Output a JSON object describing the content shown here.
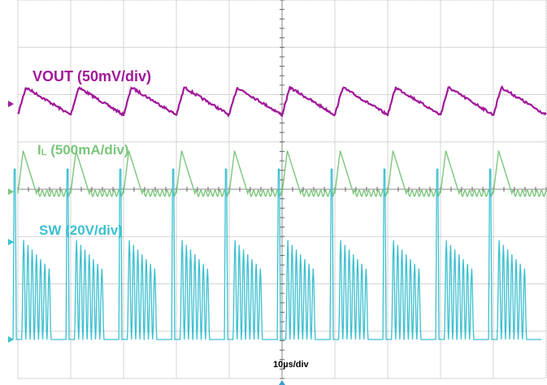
{
  "chart_data": {
    "type": "line",
    "title": "",
    "grid": true,
    "divisions": {
      "x": 10,
      "y": 8
    },
    "timebase": "10µs/div",
    "x_range_us": [
      0,
      100
    ],
    "switching_period_us": 10,
    "series": [
      {
        "name": "VOUT (50mV/div)",
        "label_main": "VOUT (50mV/div)",
        "color": "#a1189a",
        "scale_per_div": "50mV",
        "ripple_pp_div": 0.58,
        "waveform": "sawtooth",
        "x_us": [
          0,
          1.5,
          10,
          11.5,
          20,
          21.5,
          30,
          31.5,
          40,
          41.5,
          50,
          51.5,
          60,
          61.5,
          70,
          71.5,
          80,
          81.5,
          90,
          91.5,
          100
        ],
        "y_div": [
          -0.3,
          0.28,
          -0.3,
          0.28,
          -0.3,
          0.28,
          -0.3,
          0.28,
          -0.3,
          0.28,
          -0.3,
          0.28,
          -0.3,
          0.28,
          -0.3,
          0.28,
          -0.3,
          0.28,
          -0.3,
          0.28,
          -0.3
        ]
      },
      {
        "name": "IL (500mA/div)",
        "label_main": "I",
        "label_sub": "L",
        "label_rest": " (500mA/div)",
        "color": "#7bc67b",
        "scale_per_div": "500mA",
        "peak_div": 0.9,
        "ringing_pp_div": 0.13,
        "waveform": "triangular pulse then ringing near zero",
        "x_us": [
          0,
          1,
          3.5,
          10,
          11,
          13.5,
          20,
          21,
          23.5,
          30,
          31,
          33.5,
          40,
          41,
          43.5,
          50,
          51,
          53.5,
          60,
          61,
          63.5,
          70,
          71,
          73.5,
          80,
          81,
          83.5,
          90,
          91,
          93.5,
          100
        ],
        "y_div": [
          0,
          0.9,
          0,
          0,
          0.9,
          0,
          0,
          0.9,
          0,
          0,
          0.9,
          0,
          0,
          0.9,
          0,
          0,
          0.9,
          0,
          0,
          0.9,
          0,
          0,
          0.9,
          0,
          0,
          0.9,
          0,
          0,
          0.9,
          0,
          0
        ]
      },
      {
        "name": "SW (20V/div)",
        "label_main": "SW (20V/div)",
        "color": "#3cc0d0",
        "scale_per_div": "20V",
        "main_pulse_div": 3.6,
        "ringing_start_div": 2.1,
        "ringing_end_div": 1.5,
        "ringing_cycles": 7,
        "waveform": "narrow full pulse then decaying ringing bursts"
      }
    ]
  },
  "colors": {
    "grid": "#aaaaaa",
    "background": "#ffffff",
    "marker": "#3aa0d0"
  }
}
